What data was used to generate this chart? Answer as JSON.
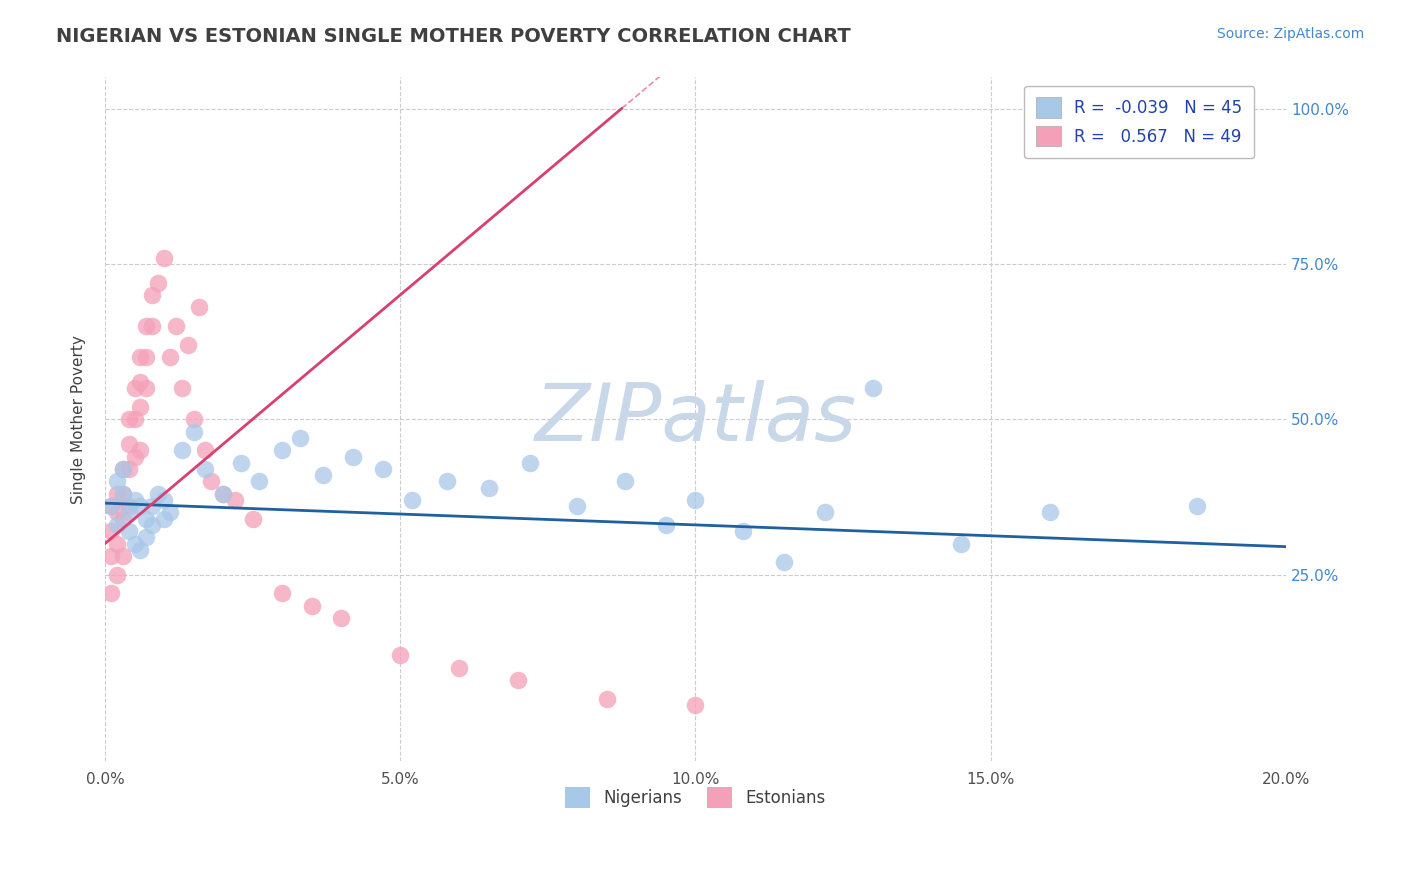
{
  "title": "NIGERIAN VS ESTONIAN SINGLE MOTHER POVERTY CORRELATION CHART",
  "source_text": "Source: ZipAtlas.com",
  "ylabel": "Single Mother Poverty",
  "xlim": [
    0.0,
    0.2
  ],
  "ylim": [
    -0.05,
    1.05
  ],
  "xtick_labels": [
    "0.0%",
    "5.0%",
    "10.0%",
    "15.0%",
    "20.0%"
  ],
  "xtick_vals": [
    0.0,
    0.05,
    0.1,
    0.15,
    0.2
  ],
  "ytick_labels": [
    "25.0%",
    "50.0%",
    "75.0%",
    "100.0%"
  ],
  "ytick_vals": [
    0.25,
    0.5,
    0.75,
    1.0
  ],
  "watermark": "ZIPatlas",
  "nigerians_R": -0.039,
  "nigerians_N": 45,
  "estonians_R": 0.567,
  "estonians_N": 49,
  "nigerian_color": "#a8c8e8",
  "estonian_color": "#f4a0b8",
  "nigerian_line_color": "#2060a0",
  "estonian_line_color": "#d84070",
  "bg_color": "#ffffff",
  "grid_color": "#cccccc",
  "title_color": "#404040",
  "watermark_color": "#c8d8e8",
  "nigerian_x": [
    0.001,
    0.002,
    0.002,
    0.003,
    0.003,
    0.004,
    0.004,
    0.005,
    0.005,
    0.006,
    0.006,
    0.007,
    0.007,
    0.008,
    0.008,
    0.009,
    0.01,
    0.01,
    0.011,
    0.013,
    0.015,
    0.017,
    0.02,
    0.023,
    0.026,
    0.03,
    0.033,
    0.037,
    0.042,
    0.047,
    0.052,
    0.058,
    0.065,
    0.072,
    0.08,
    0.088,
    0.095,
    0.1,
    0.108,
    0.115,
    0.122,
    0.13,
    0.145,
    0.16,
    0.185
  ],
  "nigerian_y": [
    0.36,
    0.4,
    0.33,
    0.38,
    0.42,
    0.35,
    0.32,
    0.37,
    0.3,
    0.36,
    0.29,
    0.34,
    0.31,
    0.36,
    0.33,
    0.38,
    0.34,
    0.37,
    0.35,
    0.45,
    0.48,
    0.42,
    0.38,
    0.43,
    0.4,
    0.45,
    0.47,
    0.41,
    0.44,
    0.42,
    0.37,
    0.4,
    0.39,
    0.43,
    0.36,
    0.4,
    0.33,
    0.37,
    0.32,
    0.27,
    0.35,
    0.55,
    0.3,
    0.35,
    0.36
  ],
  "estonian_x": [
    0.001,
    0.001,
    0.001,
    0.001,
    0.002,
    0.002,
    0.002,
    0.002,
    0.003,
    0.003,
    0.003,
    0.003,
    0.004,
    0.004,
    0.004,
    0.004,
    0.005,
    0.005,
    0.005,
    0.006,
    0.006,
    0.006,
    0.006,
    0.007,
    0.007,
    0.007,
    0.008,
    0.008,
    0.009,
    0.01,
    0.011,
    0.012,
    0.013,
    0.014,
    0.015,
    0.016,
    0.017,
    0.018,
    0.02,
    0.022,
    0.025,
    0.03,
    0.035,
    0.04,
    0.05,
    0.06,
    0.07,
    0.085,
    0.1
  ],
  "estonian_y": [
    0.36,
    0.32,
    0.28,
    0.22,
    0.38,
    0.35,
    0.3,
    0.25,
    0.42,
    0.38,
    0.34,
    0.28,
    0.5,
    0.46,
    0.42,
    0.36,
    0.55,
    0.5,
    0.44,
    0.6,
    0.56,
    0.52,
    0.45,
    0.65,
    0.6,
    0.55,
    0.7,
    0.65,
    0.72,
    0.76,
    0.6,
    0.65,
    0.55,
    0.62,
    0.5,
    0.68,
    0.45,
    0.4,
    0.38,
    0.37,
    0.34,
    0.22,
    0.2,
    0.18,
    0.12,
    0.1,
    0.08,
    0.05,
    0.04
  ],
  "estonian_trendline_x": [
    0.0,
    0.07
  ],
  "nigerian_trendline_x": [
    0.0,
    0.2
  ],
  "estonian_line_slope": 8.0,
  "estonian_line_intercept": 0.3,
  "nigerian_line_slope": -0.35,
  "nigerian_line_intercept": 0.365
}
